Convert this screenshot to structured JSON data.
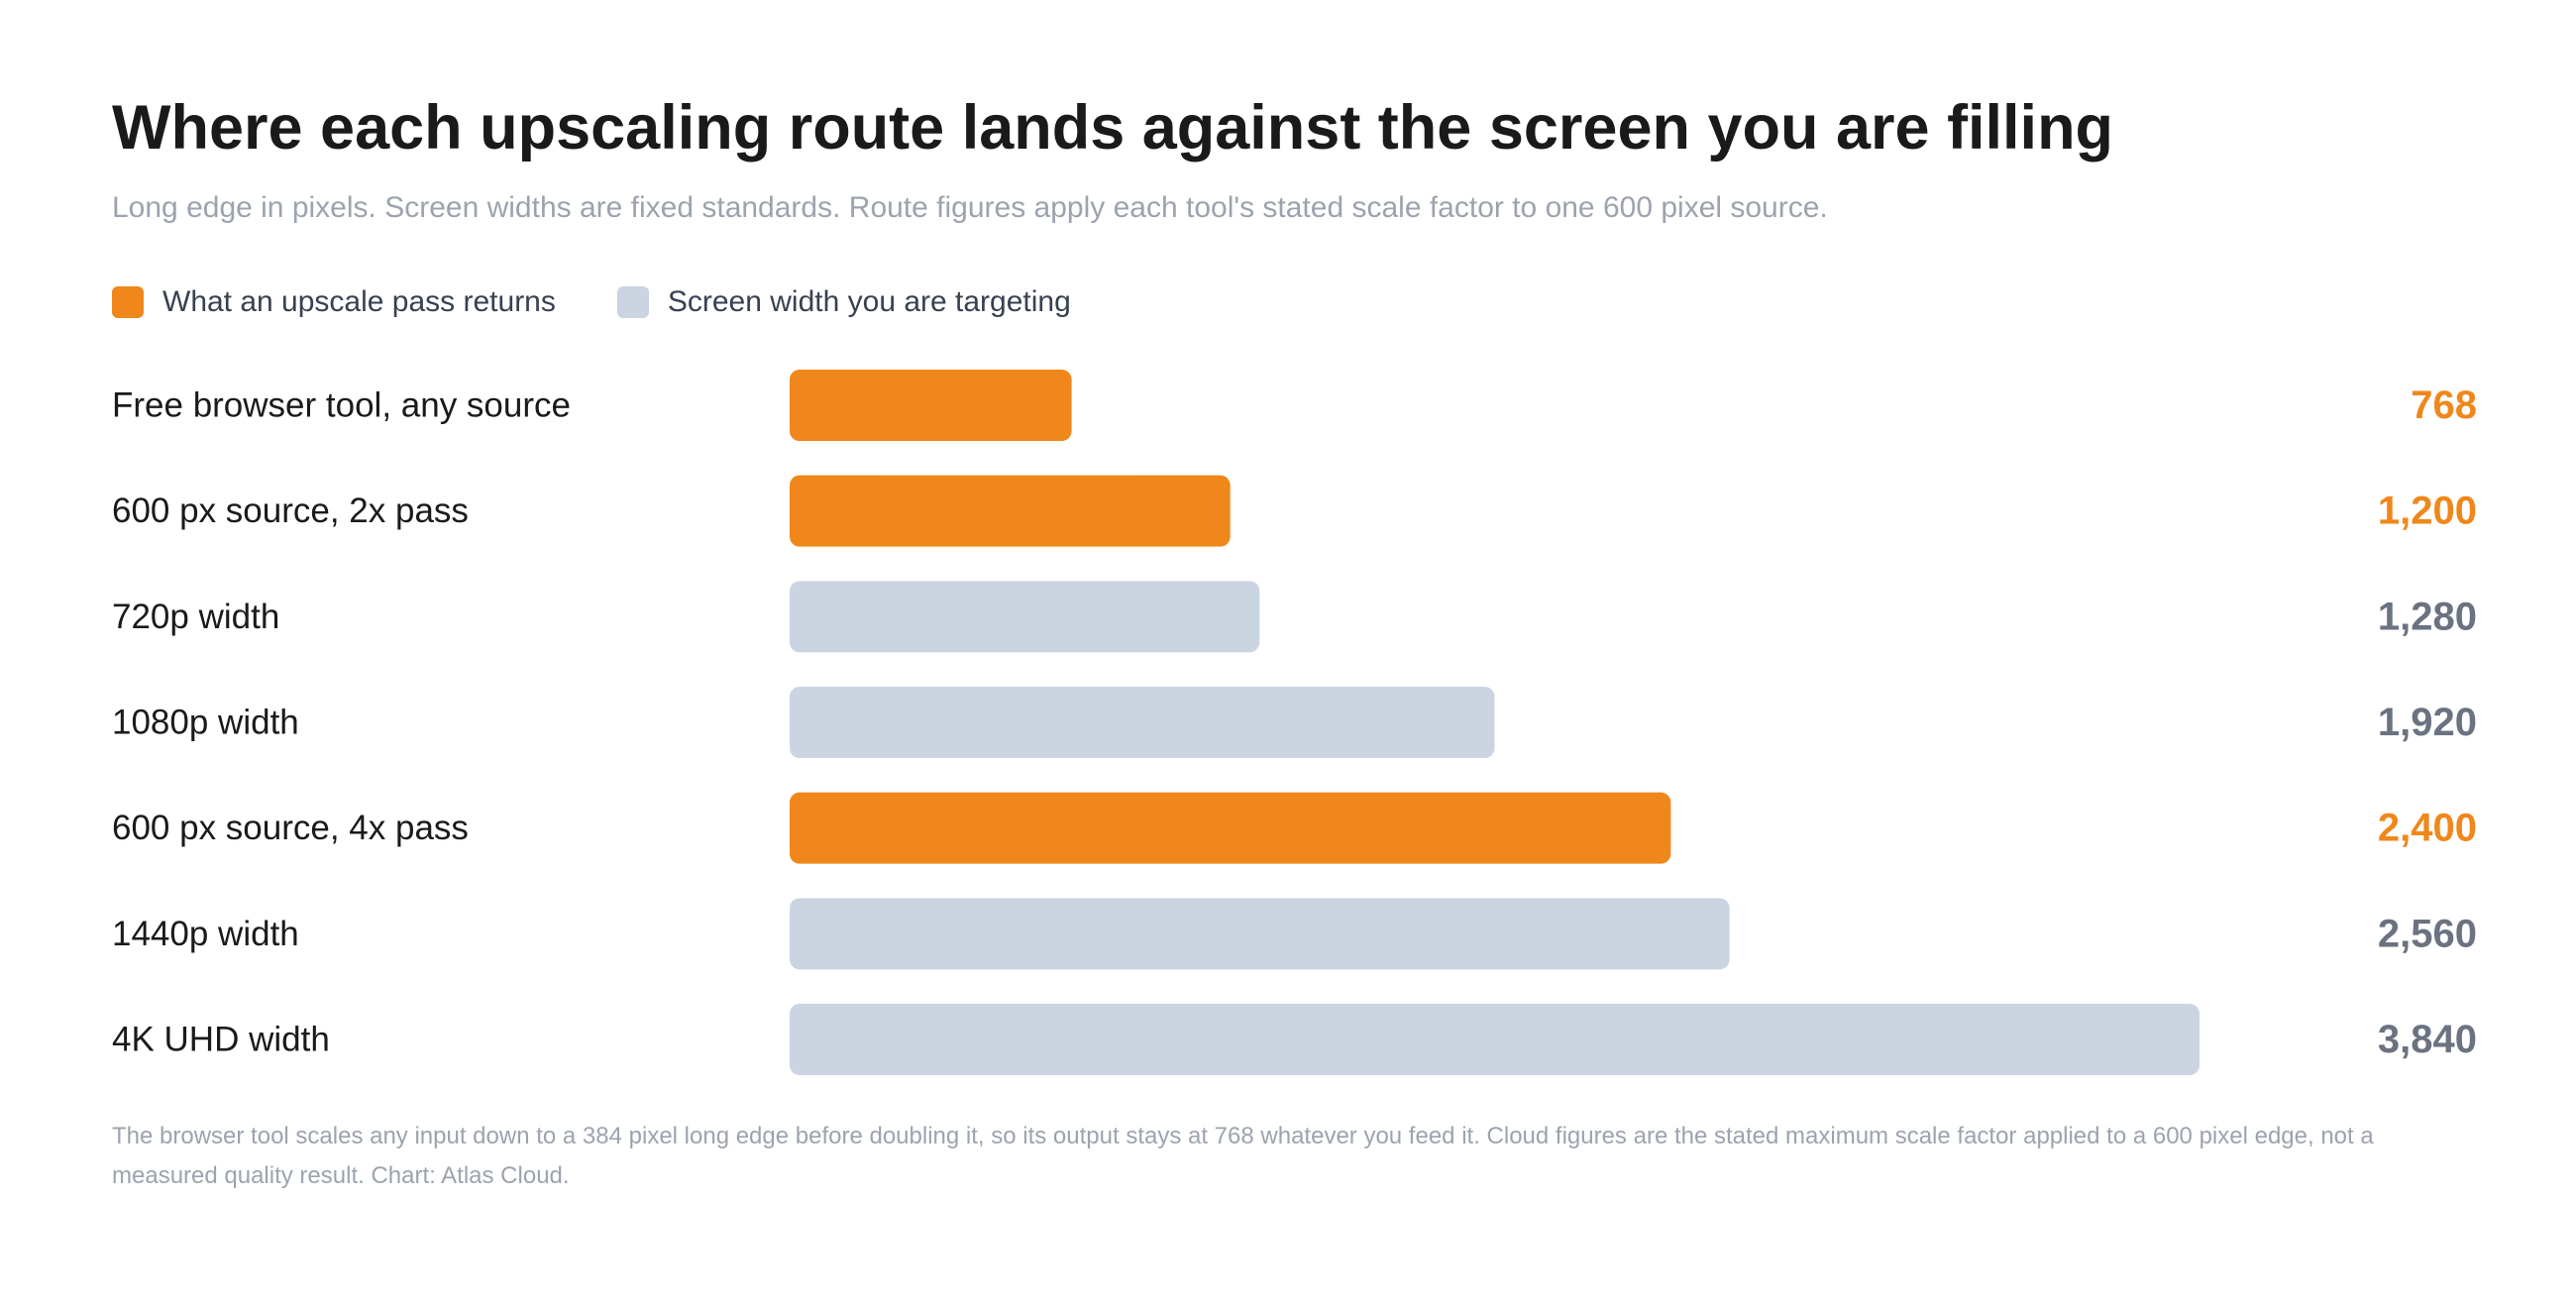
{
  "title": "Where each upscaling route lands against the screen you are filling",
  "subtitle": "Long edge in pixels. Screen widths are fixed standards. Route figures apply each tool's stated scale factor to one 600 pixel source.",
  "legend": [
    {
      "label": "What an upscale pass returns",
      "color": "#f0871b"
    },
    {
      "label": "Screen width you are targeting",
      "color": "#cbd5e1"
    }
  ],
  "colors": {
    "route": "#f0871b",
    "screen": "#cbd5e1",
    "route_value_text": "#f0871b",
    "screen_value_text": "#6b7280",
    "label_text": "#1a1a1a"
  },
  "chart_data": {
    "type": "bar",
    "orientation": "horizontal",
    "categories": [
      "Free browser tool, any source",
      "600 px source, 2x pass",
      "720p width",
      "1080p width",
      "600 px source, 4x pass",
      "1440p width",
      "4K UHD width"
    ],
    "values": [
      768,
      1200,
      1280,
      1920,
      2400,
      2560,
      3840
    ],
    "value_labels": [
      "768",
      "1,200",
      "1,280",
      "1,920",
      "2,400",
      "2,560",
      "3,840"
    ],
    "kinds": [
      "route",
      "route",
      "screen",
      "screen",
      "route",
      "screen",
      "screen"
    ],
    "xlim": [
      0,
      3840
    ],
    "grid": false,
    "legend_position": "top-left"
  },
  "footnote": "The browser tool scales any input down to a 384 pixel long edge before doubling it, so its output stays at 768 whatever you feed it. Cloud figures are the stated maximum scale factor applied to a 600 pixel edge, not a measured quality result. Chart: Atlas Cloud."
}
